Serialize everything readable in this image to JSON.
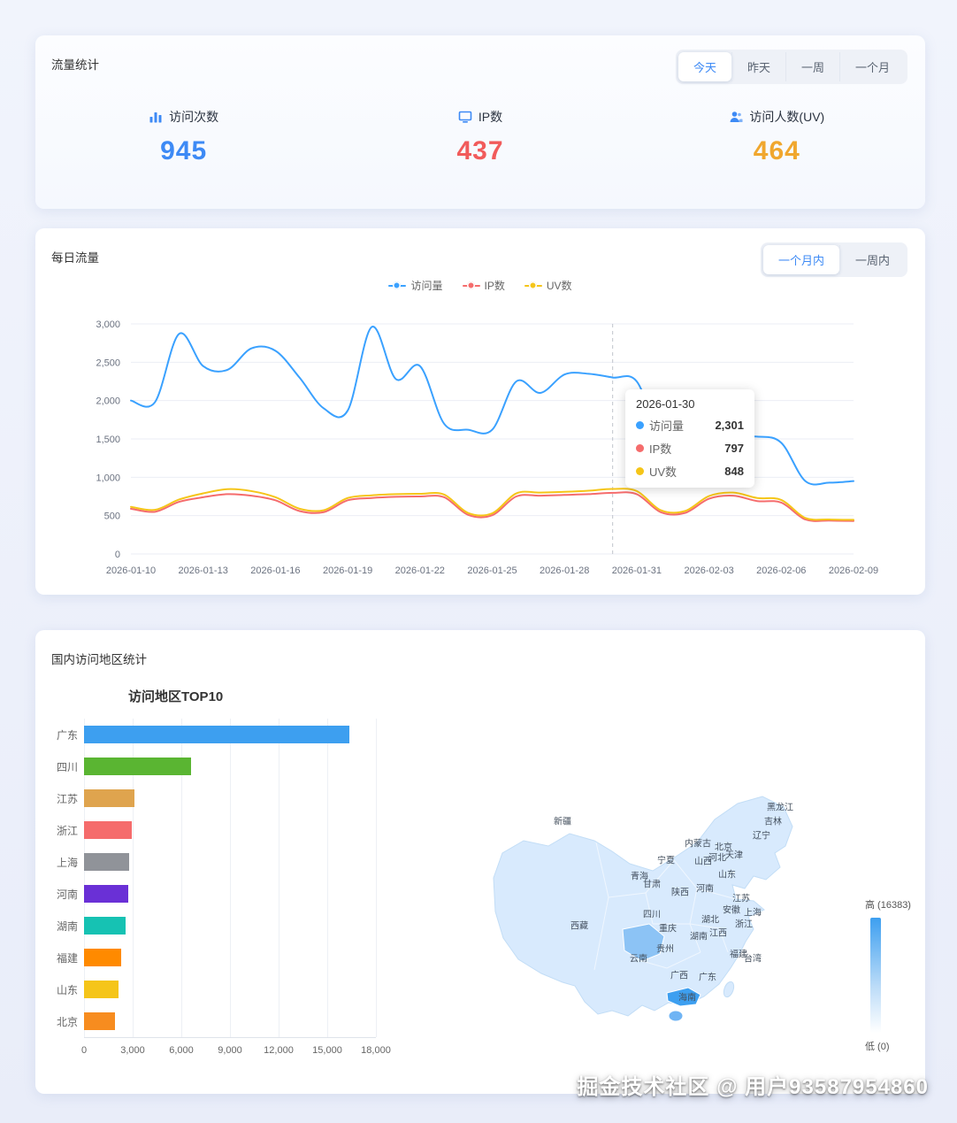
{
  "watermark": "掘金技术社区 @ 用户93587954860",
  "traffic_stats": {
    "title": "流量统计",
    "tabs": [
      {
        "label": "今天",
        "active": true
      },
      {
        "label": "昨天",
        "active": false
      },
      {
        "label": "一周",
        "active": false
      },
      {
        "label": "一个月",
        "active": false
      }
    ],
    "stats": [
      {
        "label": "访问次数",
        "value": "945",
        "color": "#3d8af5",
        "icon": "bar-chart-icon"
      },
      {
        "label": "IP数",
        "value": "437",
        "color": "#f15b5b",
        "icon": "monitor-icon"
      },
      {
        "label": "访问人数(UV)",
        "value": "464",
        "color": "#f0a72e",
        "icon": "user-icon"
      }
    ]
  },
  "daily_traffic": {
    "title": "每日流量",
    "range_tabs": [
      {
        "label": "一个月内",
        "active": true
      },
      {
        "label": "一周内",
        "active": false
      }
    ],
    "tooltip": {
      "date": "2026-01-30",
      "rows": [
        {
          "label": "访问量",
          "value": "2,301"
        },
        {
          "label": "IP数",
          "value": "797"
        },
        {
          "label": "UV数",
          "value": "848"
        }
      ]
    }
  },
  "region_stats": {
    "title": "国内访问地区统计",
    "bar_chart_title": "访问地区TOP10",
    "map_legend": {
      "high": "高 (16383)",
      "low": "低 (0)"
    }
  },
  "chart_data": [
    {
      "type": "line",
      "title": "每日流量",
      "x": [
        "2026-01-10",
        "2026-01-11",
        "2026-01-12",
        "2026-01-13",
        "2026-01-14",
        "2026-01-15",
        "2026-01-16",
        "2026-01-17",
        "2026-01-18",
        "2026-01-19",
        "2026-01-20",
        "2026-01-21",
        "2026-01-22",
        "2026-01-23",
        "2026-01-24",
        "2026-01-25",
        "2026-01-26",
        "2026-01-27",
        "2026-01-28",
        "2026-01-29",
        "2026-01-30",
        "2026-01-31",
        "2026-02-01",
        "2026-02-02",
        "2026-02-03",
        "2026-02-04",
        "2026-02-05",
        "2026-02-06",
        "2026-02-07",
        "2026-02-08",
        "2026-02-09"
      ],
      "x_label_step": 3,
      "ylim": [
        0,
        3000
      ],
      "yticks": [
        0,
        500,
        1000,
        1500,
        2000,
        2500,
        3000
      ],
      "grid": true,
      "legend_position": "top",
      "marker_index": 20,
      "series": [
        {
          "name": "访问量",
          "color": "#3aa1ff",
          "values": [
            2000,
            1980,
            2870,
            2450,
            2400,
            2680,
            2650,
            2300,
            1900,
            1870,
            2960,
            2280,
            2450,
            1700,
            1620,
            1620,
            2250,
            2100,
            2340,
            2350,
            2301,
            2250,
            1520,
            1450,
            1470,
            1500,
            1530,
            1450,
            950,
            930,
            950
          ]
        },
        {
          "name": "IP数",
          "color": "#f56c6c",
          "values": [
            590,
            550,
            680,
            740,
            780,
            760,
            700,
            560,
            545,
            700,
            730,
            745,
            750,
            740,
            510,
            505,
            750,
            760,
            770,
            780,
            797,
            780,
            545,
            535,
            720,
            760,
            690,
            670,
            450,
            435,
            430
          ]
        },
        {
          "name": "UV数",
          "color": "#f5c518",
          "values": [
            615,
            575,
            710,
            790,
            845,
            820,
            740,
            590,
            570,
            730,
            765,
            780,
            785,
            775,
            535,
            530,
            790,
            800,
            810,
            825,
            848,
            820,
            570,
            560,
            755,
            800,
            730,
            705,
            470,
            450,
            445
          ]
        }
      ]
    },
    {
      "type": "bar",
      "title": "访问地区TOP10",
      "orientation": "horizontal",
      "categories": [
        "广东",
        "四川",
        "江苏",
        "浙江",
        "上海",
        "河南",
        "湖南",
        "福建",
        "山东",
        "北京"
      ],
      "values": [
        16383,
        6600,
        3100,
        2950,
        2800,
        2700,
        2550,
        2300,
        2150,
        1900
      ],
      "colors": [
        "#3d9ff0",
        "#5ab532",
        "#dfa44e",
        "#f56c6c",
        "#909399",
        "#6a30d6",
        "#16c2b3",
        "#ff8a00",
        "#f5c51a",
        "#f78c1f"
      ],
      "xlim": [
        0,
        18000
      ],
      "xticks": [
        0,
        3000,
        6000,
        9000,
        12000,
        15000,
        18000
      ]
    },
    {
      "type": "map",
      "region": "china",
      "max_value": 16383,
      "min_value": 0,
      "legend_high_label": "高 (16383)",
      "legend_low_label": "低 (0)",
      "highlighted": [
        {
          "name": "广东",
          "value": 16383
        },
        {
          "name": "四川",
          "value": 6600
        }
      ],
      "labels": [
        {
          "name": "新疆",
          "x": 96,
          "y": 63
        },
        {
          "name": "黑龙江",
          "x": 342,
          "y": 47
        },
        {
          "name": "吉林",
          "x": 334,
          "y": 63
        },
        {
          "name": "辽宁",
          "x": 321,
          "y": 79
        },
        {
          "name": "内蒙古",
          "x": 249,
          "y": 88
        },
        {
          "name": "北京",
          "x": 278,
          "y": 92
        },
        {
          "name": "天津",
          "x": 290,
          "y": 101
        },
        {
          "name": "河北",
          "x": 271,
          "y": 104
        },
        {
          "name": "山西",
          "x": 255,
          "y": 108
        },
        {
          "name": "宁夏",
          "x": 213,
          "y": 107
        },
        {
          "name": "山东",
          "x": 282,
          "y": 123
        },
        {
          "name": "青海",
          "x": 183,
          "y": 125
        },
        {
          "name": "甘肃",
          "x": 197,
          "y": 134
        },
        {
          "name": "陕西",
          "x": 229,
          "y": 143
        },
        {
          "name": "河南",
          "x": 257,
          "y": 139
        },
        {
          "name": "西藏",
          "x": 115,
          "y": 181
        },
        {
          "name": "四川",
          "x": 197,
          "y": 168
        },
        {
          "name": "重庆",
          "x": 215,
          "y": 184
        },
        {
          "name": "湖北",
          "x": 263,
          "y": 174
        },
        {
          "name": "安徽",
          "x": 287,
          "y": 163
        },
        {
          "name": "江苏",
          "x": 298,
          "y": 150
        },
        {
          "name": "上海",
          "x": 311,
          "y": 166
        },
        {
          "name": "浙江",
          "x": 301,
          "y": 179
        },
        {
          "name": "江西",
          "x": 272,
          "y": 189
        },
        {
          "name": "湖南",
          "x": 250,
          "y": 193
        },
        {
          "name": "贵州",
          "x": 212,
          "y": 207
        },
        {
          "name": "云南",
          "x": 182,
          "y": 218
        },
        {
          "name": "福建",
          "x": 295,
          "y": 213
        },
        {
          "name": "台湾",
          "x": 311,
          "y": 218
        },
        {
          "name": "广西",
          "x": 228,
          "y": 237
        },
        {
          "name": "广东",
          "x": 260,
          "y": 239
        },
        {
          "name": "海南",
          "x": 237,
          "y": 262
        }
      ]
    }
  ]
}
